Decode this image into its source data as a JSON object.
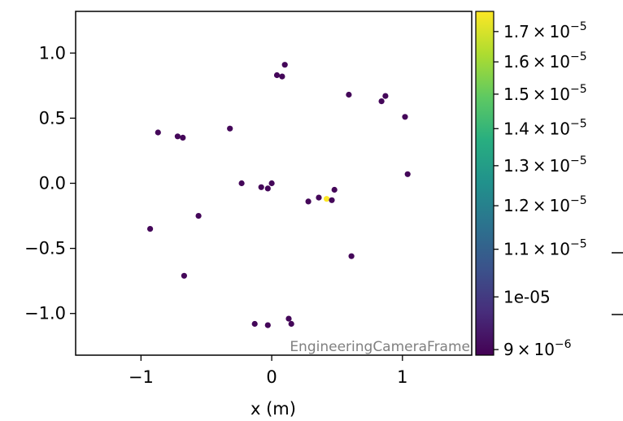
{
  "chart_data": {
    "type": "scatter",
    "title": "",
    "xlabel": "x  (m)",
    "ylabel": "",
    "xlim": [
      -1.5,
      1.53
    ],
    "ylim": [
      -1.32,
      1.32
    ],
    "xticks": [
      -1,
      0,
      1
    ],
    "xtick_labels": [
      "−1",
      "0",
      "1"
    ],
    "yticks": [
      1.0,
      0.5,
      0.0,
      -0.5,
      -1.0
    ],
    "ytick_labels": [
      "1.0",
      "0.5",
      "0.0",
      "−0.5",
      "−1.0"
    ],
    "grid": false,
    "annotation": "EngineeringCameraFrame",
    "colorbar": {
      "colormap": "viridis",
      "scale": "log",
      "range": [
        8.9e-06,
        1.77e-05
      ],
      "ticks": [
        {
          "value": 1.7e-05,
          "mantissa": "1.7",
          "exponent": "−5"
        },
        {
          "value": 1.6e-05,
          "mantissa": "1.6",
          "exponent": "−5"
        },
        {
          "value": 1.5e-05,
          "mantissa": "1.5",
          "exponent": "−5"
        },
        {
          "value": 1.4e-05,
          "mantissa": "1.4",
          "exponent": "−5"
        },
        {
          "value": 1.3e-05,
          "mantissa": "1.3",
          "exponent": "−5"
        },
        {
          "value": 1.2e-05,
          "mantissa": "1.2",
          "exponent": "−5"
        },
        {
          "value": 1.1e-05,
          "mantissa": "1.1",
          "exponent": "−5"
        },
        {
          "value": 1e-05,
          "label": "1e-05"
        },
        {
          "value": 9e-06,
          "mantissa": "9",
          "exponent": "−6"
        }
      ]
    },
    "points": [
      {
        "x": 0.1,
        "y": 0.91,
        "c": 9e-06
      },
      {
        "x": 0.04,
        "y": 0.83,
        "c": 9e-06
      },
      {
        "x": 0.08,
        "y": 0.82,
        "c": 9e-06
      },
      {
        "x": 0.59,
        "y": 0.68,
        "c": 9e-06
      },
      {
        "x": 0.87,
        "y": 0.67,
        "c": 9e-06
      },
      {
        "x": 0.84,
        "y": 0.63,
        "c": 9e-06
      },
      {
        "x": 1.02,
        "y": 0.51,
        "c": 9e-06
      },
      {
        "x": -0.32,
        "y": 0.42,
        "c": 9e-06
      },
      {
        "x": -0.87,
        "y": 0.39,
        "c": 9e-06
      },
      {
        "x": -0.72,
        "y": 0.36,
        "c": 9e-06
      },
      {
        "x": -0.68,
        "y": 0.35,
        "c": 9e-06
      },
      {
        "x": 1.04,
        "y": 0.07,
        "c": 9e-06
      },
      {
        "x": -0.23,
        "y": 0.0,
        "c": 9e-06
      },
      {
        "x": 0.0,
        "y": 0.0,
        "c": 9e-06
      },
      {
        "x": -0.08,
        "y": -0.03,
        "c": 9e-06
      },
      {
        "x": -0.03,
        "y": -0.04,
        "c": 9e-06
      },
      {
        "x": 0.48,
        "y": -0.05,
        "c": 9e-06
      },
      {
        "x": 0.36,
        "y": -0.11,
        "c": 9e-06
      },
      {
        "x": 0.42,
        "y": -0.12,
        "c": 1.77e-05
      },
      {
        "x": 0.46,
        "y": -0.13,
        "c": 9e-06
      },
      {
        "x": 0.28,
        "y": -0.14,
        "c": 9e-06
      },
      {
        "x": -0.56,
        "y": -0.25,
        "c": 9e-06
      },
      {
        "x": -0.93,
        "y": -0.35,
        "c": 9e-06
      },
      {
        "x": 0.61,
        "y": -0.56,
        "c": 9e-06
      },
      {
        "x": -0.67,
        "y": -0.71,
        "c": 9e-06
      },
      {
        "x": 0.13,
        "y": -1.04,
        "c": 9e-06
      },
      {
        "x": -0.13,
        "y": -1.08,
        "c": 9e-06
      },
      {
        "x": 0.15,
        "y": -1.08,
        "c": 9e-06
      },
      {
        "x": -0.03,
        "y": -1.09,
        "c": 9e-06
      }
    ]
  }
}
